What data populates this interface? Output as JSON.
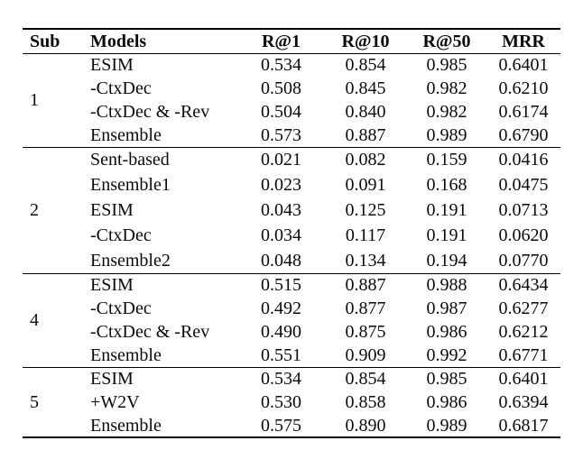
{
  "page": {
    "background_color": "#ffffff",
    "text_color": "#0a0a0a",
    "rule_color": "#000000"
  },
  "table": {
    "headers": [
      "Sub",
      "Models",
      "R@1",
      "R@10",
      "R@50",
      "MRR"
    ],
    "sections": [
      {
        "sub": "1",
        "rows": [
          [
            "ESIM",
            "0.534",
            "0.854",
            "0.985",
            "0.6401"
          ],
          [
            "-CtxDec",
            "0.508",
            "0.845",
            "0.982",
            "0.6210"
          ],
          [
            "-CtxDec & -Rev",
            "0.504",
            "0.840",
            "0.982",
            "0.6174"
          ],
          [
            "Ensemble",
            "0.573",
            "0.887",
            "0.989",
            "0.6790"
          ]
        ]
      },
      {
        "sub": "2",
        "rows": [
          [
            "Sent-based",
            "0.021",
            "0.082",
            "0.159",
            "0.0416"
          ],
          [
            "Ensemble1",
            "0.023",
            "0.091",
            "0.168",
            "0.0475"
          ],
          [
            "ESIM",
            "0.043",
            "0.125",
            "0.191",
            "0.0713"
          ],
          [
            "-CtxDec",
            "0.034",
            "0.117",
            "0.191",
            "0.0620"
          ],
          [
            "Ensemble2",
            "0.048",
            "0.134",
            "0.194",
            "0.0770"
          ]
        ]
      },
      {
        "sub": "4",
        "rows": [
          [
            "ESIM",
            "0.515",
            "0.887",
            "0.988",
            "0.6434"
          ],
          [
            "-CtxDec",
            "0.492",
            "0.877",
            "0.987",
            "0.6277"
          ],
          [
            "-CtxDec & -Rev",
            "0.490",
            "0.875",
            "0.986",
            "0.6212"
          ],
          [
            "Ensemble",
            "0.551",
            "0.909",
            "0.992",
            "0.6771"
          ]
        ]
      },
      {
        "sub": "5",
        "rows": [
          [
            "ESIM",
            "0.534",
            "0.854",
            "0.985",
            "0.6401"
          ],
          [
            "+W2V",
            "0.530",
            "0.858",
            "0.986",
            "0.6394"
          ],
          [
            "Ensemble",
            "0.575",
            "0.890",
            "0.989",
            "0.6817"
          ]
        ]
      }
    ]
  }
}
